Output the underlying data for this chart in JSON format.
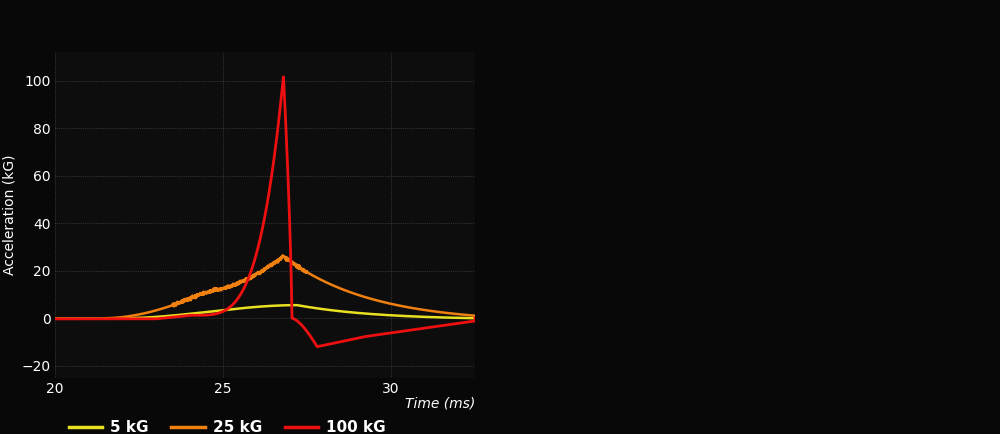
{
  "bg_color": "#080808",
  "plot_bg_color": "#0d0d0d",
  "grid_color": "#666666",
  "text_color": "#ffffff",
  "xlabel": "Time (ms)",
  "ylabel": "Acceleration (kG)",
  "xlim": [
    20,
    32.5
  ],
  "ylim": [
    -25,
    112
  ],
  "xticks": [
    20,
    25,
    30
  ],
  "yticks": [
    -20,
    0,
    20,
    40,
    60,
    80,
    100
  ],
  "series": [
    {
      "label": "5 kG",
      "color": "#e8e020",
      "linewidth": 1.8
    },
    {
      "label": "25 kG",
      "color": "#f08010",
      "linewidth": 1.8
    },
    {
      "label": "100 kG",
      "color": "#ee1010",
      "linewidth": 2.0
    }
  ],
  "legend_fontsize": 11,
  "axis_fontsize": 10,
  "label_fontsize": 10,
  "figsize": [
    10.0,
    4.34
  ],
  "dpi": 100
}
